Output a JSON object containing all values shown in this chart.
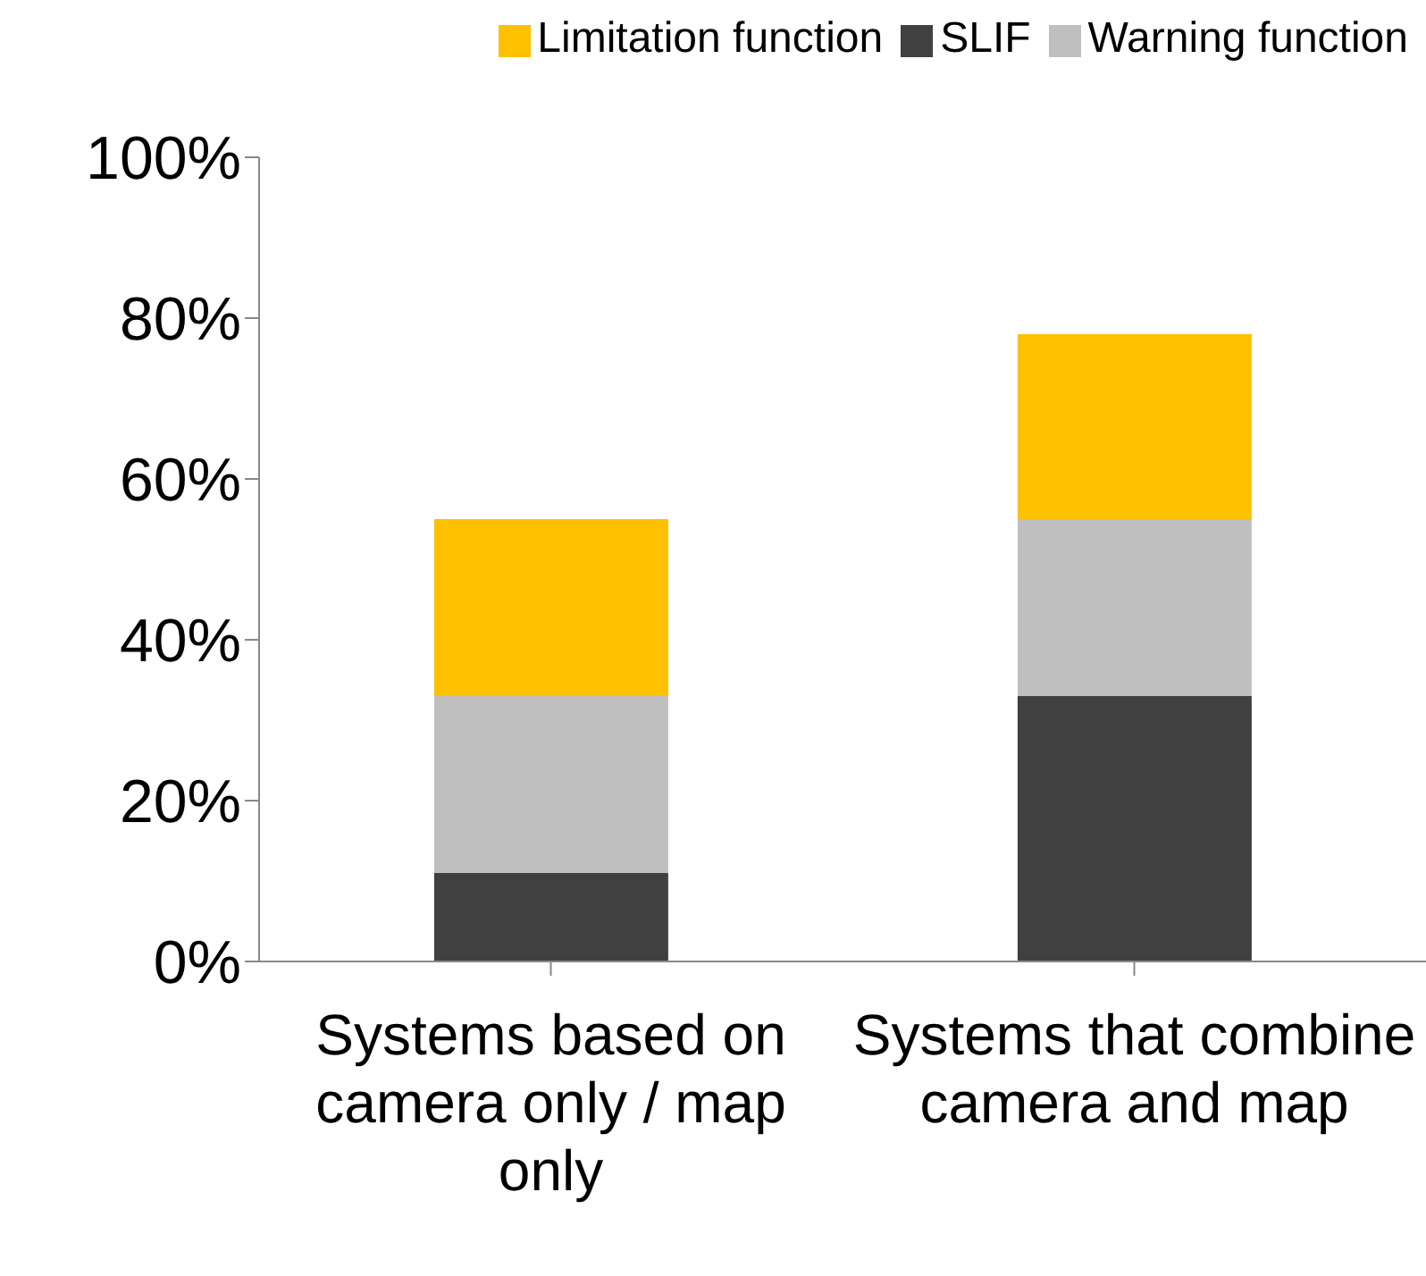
{
  "chart_data": {
    "type": "bar",
    "stacked": true,
    "categories": [
      "Systems based on camera only / map only",
      "Systems that combine camera and map"
    ],
    "series": [
      {
        "name": "SLIF",
        "color": "#404040",
        "values": [
          11,
          33
        ]
      },
      {
        "name": "Warning function",
        "color": "#bfbfbf",
        "values": [
          22,
          22
        ]
      },
      {
        "name": "Limitation function",
        "color": "#ffc000",
        "values": [
          22,
          23
        ]
      }
    ],
    "ylim": [
      0,
      100
    ],
    "yticks": [
      {
        "value": 0,
        "label": "0%"
      },
      {
        "value": 20,
        "label": "20%"
      },
      {
        "value": 40,
        "label": "40%"
      },
      {
        "value": 60,
        "label": "60%"
      },
      {
        "value": 80,
        "label": "80%"
      },
      {
        "value": 100,
        "label": "100%"
      }
    ],
    "grid": false,
    "legend": "top right"
  }
}
